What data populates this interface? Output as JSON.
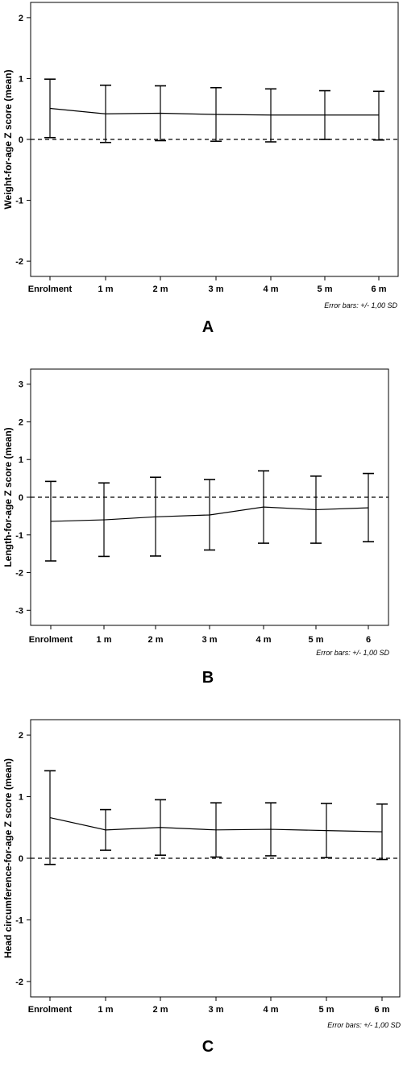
{
  "chart_data": [
    {
      "type": "line",
      "panel_label": "A",
      "ylabel": "Weight-for-age Z score (mean)",
      "note": "Error bars: +/- 1,00 SD",
      "categories": [
        "Enrolment",
        "1 m",
        "2 m",
        "3 m",
        "4 m",
        "5 m",
        "6 m"
      ],
      "ylim": [
        -2.25,
        2.25
      ],
      "yticks": [
        -2,
        -1,
        0,
        1,
        2
      ],
      "ytick_labels": [
        "-2",
        "-1",
        "0",
        "1",
        "2"
      ],
      "reference_line": 0,
      "series": [
        {
          "mean": [
            0.51,
            0.42,
            0.43,
            0.41,
            0.4,
            0.4,
            0.4
          ],
          "upper": [
            0.99,
            0.89,
            0.88,
            0.85,
            0.83,
            0.8,
            0.79
          ],
          "lower": [
            0.03,
            -0.05,
            -0.02,
            -0.03,
            -0.04,
            0.0,
            -0.01
          ]
        }
      ]
    },
    {
      "type": "line",
      "panel_label": "B",
      "ylabel": "Length-for-age Z score (mean)",
      "note": "Error bars: +/- 1,00 SD",
      "categories": [
        "Enrolment",
        "1 m",
        "2 m",
        "3 m",
        "4 m",
        "5 m",
        "6"
      ],
      "ylim": [
        -3.4,
        3.4
      ],
      "yticks": [
        -3,
        -2,
        -1,
        0,
        1,
        2,
        3
      ],
      "ytick_labels": [
        "-3",
        "-2",
        "-1",
        "0",
        "1",
        "2",
        "3"
      ],
      "reference_line": 0,
      "series": [
        {
          "mean": [
            -0.64,
            -0.6,
            -0.52,
            -0.47,
            -0.26,
            -0.33,
            -0.28
          ],
          "upper": [
            0.42,
            0.38,
            0.53,
            0.47,
            0.7,
            0.56,
            0.63
          ],
          "lower": [
            -1.69,
            -1.57,
            -1.56,
            -1.4,
            -1.22,
            -1.22,
            -1.18
          ]
        }
      ]
    },
    {
      "type": "line",
      "panel_label": "C",
      "ylabel": "Head circumference-for-age Z score (mean)",
      "note": "Error bars: +/- 1,00 SD",
      "categories": [
        "Enrolment",
        "1 m",
        "2 m",
        "3 m",
        "4 m",
        "5 m",
        "6 m"
      ],
      "ylim": [
        -2.25,
        2.25
      ],
      "yticks": [
        -2,
        -1,
        0,
        1,
        2
      ],
      "ytick_labels": [
        "-2",
        "-1",
        "0",
        "1",
        "2"
      ],
      "reference_line": 0,
      "series": [
        {
          "mean": [
            0.66,
            0.46,
            0.5,
            0.46,
            0.47,
            0.45,
            0.43
          ],
          "upper": [
            1.42,
            0.79,
            0.95,
            0.9,
            0.9,
            0.89,
            0.88
          ],
          "lower": [
            -0.1,
            0.13,
            0.05,
            0.02,
            0.04,
            0.01,
            -0.02
          ]
        }
      ]
    }
  ]
}
